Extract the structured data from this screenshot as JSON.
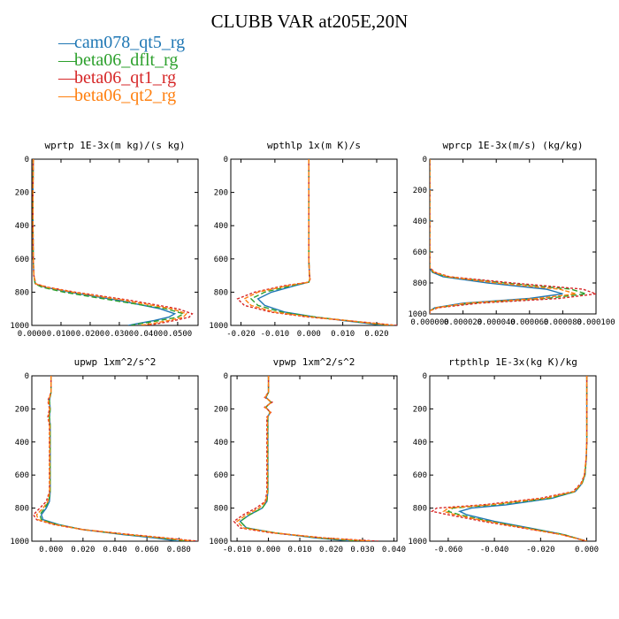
{
  "title": "CLUBB VAR at205E,20N",
  "legend": [
    {
      "name": "cam078_qt5_rg",
      "color": "#1f77b4"
    },
    {
      "name": "beta06_dflt_rg",
      "color": "#2ca02c"
    },
    {
      "name": "beta06_qt1_rg",
      "color": "#d62728"
    },
    {
      "name": "beta06_qt2_rg",
      "color": "#ff7f0e"
    }
  ],
  "chart_data": [
    {
      "type": "line",
      "title": "wprtp  1E-3x(m kg)/(s kg)",
      "xlim": [
        0,
        0.057
      ],
      "ylim": [
        1000,
        0
      ],
      "y_axis_inverted": true,
      "xticks": [
        0,
        0.01,
        0.02,
        0.03,
        0.04,
        0.05
      ],
      "xtick_labels": [
        "0.0000",
        "0.0100",
        "0.0200",
        "0.0300",
        "0.0400",
        "0.0500"
      ],
      "yticks": [
        0,
        200,
        400,
        600,
        800,
        1000
      ],
      "ytick_labels": [
        "0",
        "200",
        "400",
        "600",
        "800",
        "1000"
      ],
      "y": [
        0,
        200,
        400,
        600,
        700,
        750,
        770,
        800,
        850,
        900,
        930,
        950,
        970,
        990,
        1000
      ],
      "series": [
        {
          "name": "cam078_qt5_rg",
          "x": [
            0.0005,
            0.0004,
            0.0004,
            0.0005,
            0.0007,
            0.0012,
            0.0045,
            0.013,
            0.03,
            0.044,
            0.049,
            0.047,
            0.042,
            0.036,
            0.033
          ]
        },
        {
          "name": "beta06_dflt_rg",
          "x": [
            0.0005,
            0.0004,
            0.0004,
            0.0005,
            0.0007,
            0.0011,
            0.0035,
            0.011,
            0.028,
            0.046,
            0.052,
            0.05,
            0.044,
            0.037,
            0.034
          ]
        },
        {
          "name": "beta06_qt1_rg",
          "x": [
            0.0005,
            0.0004,
            0.0004,
            0.0005,
            0.0007,
            0.0014,
            0.0055,
            0.015,
            0.034,
            0.05,
            0.055,
            0.054,
            0.049,
            0.043,
            0.039
          ]
        },
        {
          "name": "beta06_qt2_rg",
          "x": [
            0.0005,
            0.0004,
            0.0004,
            0.0005,
            0.0007,
            0.0013,
            0.005,
            0.014,
            0.032,
            0.048,
            0.053,
            0.052,
            0.047,
            0.041,
            0.037
          ]
        }
      ]
    },
    {
      "type": "line",
      "title": "wpthlp  1x(m K)/s",
      "xlim": [
        -0.023,
        0.026
      ],
      "ylim": [
        1000,
        0
      ],
      "y_axis_inverted": true,
      "xticks": [
        -0.02,
        -0.01,
        0,
        0.01,
        0.02
      ],
      "xtick_labels": [
        "-0.020",
        "-0.010",
        "0.000",
        "0.010",
        "0.020"
      ],
      "yticks": [
        0,
        200,
        400,
        600,
        800,
        1000
      ],
      "ytick_labels": [
        "0",
        "200",
        "400",
        "600",
        "800",
        "1000"
      ],
      "y": [
        0,
        200,
        400,
        600,
        700,
        720,
        740,
        760,
        800,
        840,
        880,
        920,
        950,
        970,
        990,
        1000
      ],
      "series": [
        {
          "name": "cam078_qt5_rg",
          "x": [
            0,
            0,
            0,
            0,
            0.0002,
            0.0003,
            0,
            -0.004,
            -0.011,
            -0.015,
            -0.013,
            -0.007,
            0.002,
            0.01,
            0.018,
            0.022
          ]
        },
        {
          "name": "beta06_dflt_rg",
          "x": [
            0,
            0,
            0,
            0,
            0.0002,
            0.0003,
            0,
            -0.005,
            -0.013,
            -0.017,
            -0.015,
            -0.008,
            0.002,
            0.011,
            0.019,
            0.024
          ]
        },
        {
          "name": "beta06_qt1_rg",
          "x": [
            0,
            0,
            0,
            0,
            0.0002,
            0.0004,
            0,
            -0.007,
            -0.016,
            -0.021,
            -0.019,
            -0.011,
            0,
            0.011,
            0.021,
            0.026
          ]
        },
        {
          "name": "beta06_qt2_rg",
          "x": [
            0,
            0,
            0,
            0,
            0.0002,
            0.0003,
            0,
            -0.006,
            -0.015,
            -0.019,
            -0.017,
            -0.01,
            0.001,
            0.011,
            0.02,
            0.025
          ]
        }
      ]
    },
    {
      "type": "line",
      "title": "wprcp  1E-3x(m/s) (kg/kg)",
      "xlim": [
        0,
        0.0001
      ],
      "ylim": [
        1000,
        0
      ],
      "y_axis_inverted": true,
      "xticks": [
        0,
        2e-05,
        4e-05,
        6e-05,
        8e-05,
        0.0001
      ],
      "xtick_labels": [
        "0.000000",
        "0.000020",
        "0.000040",
        "0.000060",
        "0.000080",
        "0.000100"
      ],
      "yticks": [
        0,
        200,
        400,
        600,
        800,
        1000
      ],
      "ytick_labels": [
        "0",
        "200",
        "400",
        "600",
        "800",
        "1000"
      ],
      "y": [
        0,
        200,
        400,
        600,
        700,
        730,
        760,
        800,
        840,
        870,
        900,
        930,
        960,
        980,
        1000
      ],
      "series": [
        {
          "name": "cam078_qt5_rg",
          "x": [
            0,
            0,
            0,
            0,
            0,
            1.5e-06,
            8e-06,
            3.5e-05,
            7e-05,
            8e-05,
            6e-05,
            2e-05,
            3e-06,
            0,
            0
          ]
        },
        {
          "name": "beta06_dflt_rg",
          "x": [
            0,
            0,
            0,
            0,
            0,
            2e-06,
            1e-05,
            4.5e-05,
            8.5e-05,
            9.4e-05,
            7e-05,
            2.5e-05,
            4e-06,
            0,
            0
          ]
        },
        {
          "name": "beta06_qt1_rg",
          "x": [
            0,
            0,
            0,
            0,
            0,
            3e-06,
            1.2e-05,
            5e-05,
            9.2e-05,
            0.0001,
            7.8e-05,
            3e-05,
            5e-06,
            0,
            0
          ]
        },
        {
          "name": "beta06_qt2_rg",
          "x": [
            0,
            0,
            0,
            0,
            0,
            2.5e-06,
            1.1e-05,
            4e-05,
            7.8e-05,
            8.8e-05,
            6.5e-05,
            2.2e-05,
            4e-06,
            0,
            0
          ]
        }
      ]
    },
    {
      "type": "line",
      "title": "upwp  1xm^2/s^2",
      "xlim": [
        -0.012,
        0.092
      ],
      "ylim": [
        1000,
        0
      ],
      "y_axis_inverted": true,
      "xticks": [
        0,
        0.02,
        0.04,
        0.06,
        0.08
      ],
      "xtick_labels": [
        "0.000",
        "0.020",
        "0.040",
        "0.060",
        "0.080"
      ],
      "yticks": [
        0,
        200,
        400,
        600,
        800,
        1000
      ],
      "ytick_labels": [
        "0",
        "200",
        "400",
        "600",
        "800",
        "1000"
      ],
      "y": [
        0,
        100,
        150,
        200,
        250,
        300,
        400,
        500,
        600,
        700,
        760,
        800,
        840,
        870,
        900,
        930,
        960,
        980,
        1000
      ],
      "series": [
        {
          "name": "cam078_qt5_rg",
          "x": [
            0,
            0,
            -0.001,
            -0.0005,
            -0.001,
            -0.0005,
            -0.0005,
            -0.0005,
            -0.0005,
            -0.0005,
            -0.001,
            -0.003,
            -0.006,
            -0.005,
            0.005,
            0.02,
            0.045,
            0.065,
            0.08
          ]
        },
        {
          "name": "beta06_dflt_rg",
          "x": [
            0,
            0,
            -0.001,
            -0.0005,
            -0.001,
            -0.0005,
            -0.0005,
            -0.0005,
            -0.0005,
            -0.0005,
            -0.0015,
            -0.004,
            -0.007,
            -0.006,
            0.004,
            0.02,
            0.047,
            0.068,
            0.086
          ]
        },
        {
          "name": "beta06_qt1_rg",
          "x": [
            0,
            0,
            -0.002,
            -0.001,
            -0.002,
            -0.001,
            -0.001,
            -0.001,
            -0.001,
            -0.001,
            -0.003,
            -0.007,
            -0.011,
            -0.009,
            0.002,
            0.02,
            0.05,
            0.072,
            0.092
          ]
        },
        {
          "name": "beta06_qt2_rg",
          "x": [
            0,
            0,
            -0.0015,
            -0.0008,
            -0.0015,
            -0.0008,
            -0.0008,
            -0.0008,
            -0.0008,
            -0.0008,
            -0.002,
            -0.005,
            -0.009,
            -0.008,
            0.003,
            0.02,
            0.048,
            0.07,
            0.089
          ]
        }
      ]
    },
    {
      "type": "line",
      "title": "vpwp  1xm^2/s^2",
      "xlim": [
        -0.012,
        0.041
      ],
      "ylim": [
        1000,
        0
      ],
      "y_axis_inverted": true,
      "xticks": [
        -0.01,
        0,
        0.01,
        0.02,
        0.03,
        0.04
      ],
      "xtick_labels": [
        "-0.010",
        "0.000",
        "0.010",
        "0.020",
        "0.030",
        "0.040"
      ],
      "yticks": [
        0,
        200,
        400,
        600,
        800,
        1000
      ],
      "ytick_labels": [
        "0",
        "200",
        "400",
        "600",
        "800",
        "1000"
      ],
      "y": [
        0,
        100,
        130,
        160,
        190,
        220,
        250,
        300,
        400,
        500,
        600,
        700,
        760,
        800,
        840,
        880,
        920,
        950,
        980,
        1000
      ],
      "series": [
        {
          "name": "cam078_qt5_rg",
          "x": [
            0,
            0,
            -0.0008,
            0.0008,
            -0.0008,
            0.0005,
            -0.0002,
            -0.0002,
            -0.0002,
            -0.0002,
            -0.0002,
            -0.0002,
            -0.0005,
            -0.002,
            -0.006,
            -0.009,
            -0.007,
            0.002,
            0.015,
            0.027
          ]
        },
        {
          "name": "beta06_dflt_rg",
          "x": [
            0,
            0,
            -0.0008,
            0.0008,
            -0.0008,
            0.0005,
            -0.0002,
            -0.0002,
            -0.0002,
            -0.0002,
            -0.0002,
            -0.0002,
            -0.0005,
            -0.002,
            -0.006,
            -0.009,
            -0.007,
            0.002,
            0.016,
            0.029
          ]
        },
        {
          "name": "beta06_qt1_rg",
          "x": [
            0,
            0,
            -0.0012,
            0.0012,
            -0.0012,
            0.0008,
            -0.0005,
            -0.0005,
            -0.0005,
            -0.0005,
            -0.0005,
            -0.0005,
            -0.001,
            -0.004,
            -0.008,
            -0.011,
            -0.009,
            0.001,
            0.018,
            0.035
          ]
        },
        {
          "name": "beta06_qt2_rg",
          "x": [
            0,
            0,
            -0.001,
            0.001,
            -0.001,
            0.0006,
            -0.0003,
            -0.0003,
            -0.0003,
            -0.0003,
            -0.0003,
            -0.0003,
            -0.0008,
            -0.003,
            -0.007,
            -0.01,
            -0.008,
            0.002,
            0.017,
            0.033
          ]
        }
      ]
    },
    {
      "type": "line",
      "title": "rtpthlp  1E-3x(kg K)/kg",
      "xlim": [
        -0.068,
        0.004
      ],
      "ylim": [
        1000,
        0
      ],
      "y_axis_inverted": true,
      "xticks": [
        -0.06,
        -0.04,
        -0.02,
        0
      ],
      "xtick_labels": [
        "-0.060",
        "-0.040",
        "-0.020",
        "0.000"
      ],
      "yticks": [
        0,
        200,
        400,
        600,
        800,
        1000
      ],
      "ytick_labels": [
        "0",
        "200",
        "400",
        "600",
        "800",
        "1000"
      ],
      "y": [
        0,
        200,
        400,
        500,
        600,
        650,
        700,
        740,
        780,
        800,
        820,
        840,
        880,
        920,
        960,
        1000
      ],
      "series": [
        {
          "name": "cam078_qt5_rg",
          "x": [
            0,
            0,
            0,
            -0.0002,
            -0.0008,
            -0.002,
            -0.005,
            -0.015,
            -0.035,
            -0.05,
            -0.055,
            -0.052,
            -0.04,
            -0.025,
            -0.01,
            0
          ]
        },
        {
          "name": "beta06_dflt_rg",
          "x": [
            0,
            0,
            0,
            -0.0002,
            -0.0008,
            -0.002,
            -0.005,
            -0.016,
            -0.04,
            -0.058,
            -0.06,
            -0.055,
            -0.042,
            -0.026,
            -0.01,
            0
          ]
        },
        {
          "name": "beta06_qt1_rg",
          "x": [
            0,
            0,
            0,
            -0.0003,
            -0.001,
            -0.0025,
            -0.006,
            -0.02,
            -0.045,
            -0.065,
            -0.067,
            -0.06,
            -0.045,
            -0.028,
            -0.011,
            0
          ]
        },
        {
          "name": "beta06_qt2_rg",
          "x": [
            0,
            0,
            0,
            -0.0003,
            -0.001,
            -0.0022,
            -0.0055,
            -0.018,
            -0.042,
            -0.06,
            -0.062,
            -0.057,
            -0.043,
            -0.027,
            -0.011,
            0
          ]
        }
      ]
    }
  ]
}
